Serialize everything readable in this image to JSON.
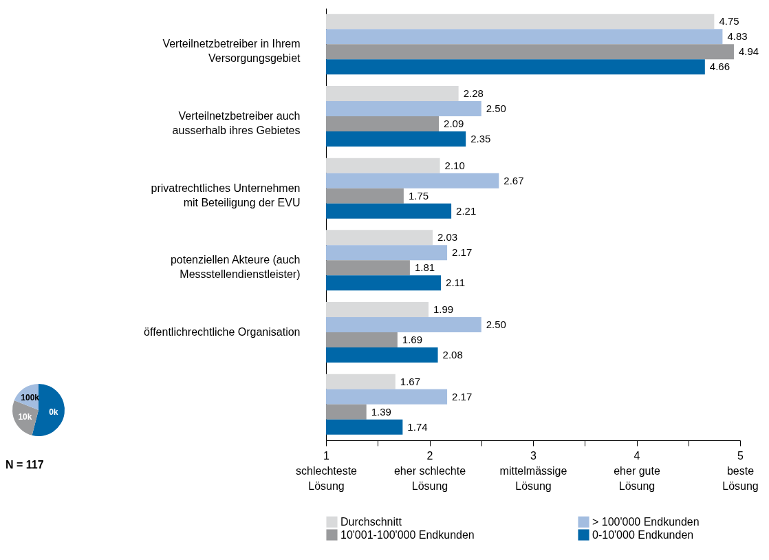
{
  "chart_data": [
    {
      "type": "bar",
      "orientation": "horizontal",
      "categories": [
        "Verteilnetzbetreiber in Ihrem Versorgungsgebiet",
        "Verteilnetzbetreiber auch ausserhalb ihres Gebietes",
        "privatrechtliches Unternehmen mit Beteiligung der EVU",
        "potenziellen Akteure (auch Messstellendienstleister)",
        "öffentlichrechtliche Organisation",
        null
      ],
      "series": [
        {
          "name": "Durchschnitt",
          "color": "#d9dadb",
          "values": [
            4.75,
            2.28,
            2.1,
            2.03,
            1.99,
            1.67
          ],
          "value_labels": [
            "4.75",
            "2.28",
            "2.10",
            "2.03",
            "1.99",
            "1.67"
          ]
        },
        {
          "name": "> 100'000 Endkunden",
          "color": "#a3bde0",
          "values": [
            4.83,
            2.5,
            2.67,
            2.17,
            2.5,
            2.17
          ],
          "value_labels": [
            "4.83",
            "2.50",
            "2.67",
            "2.17",
            "2.50",
            "2.17"
          ]
        },
        {
          "name": "10'001-100'000 Endkunden",
          "color": "#999a9c",
          "values": [
            4.94,
            2.09,
            1.75,
            1.81,
            1.69,
            1.39
          ],
          "value_labels": [
            "4.94",
            "2.09",
            "1.75",
            "1.81",
            "1.69",
            "1.39"
          ]
        },
        {
          "name": "0-10'000 Endkunden",
          "color": "#0067a8",
          "values": [
            4.66,
            2.35,
            2.21,
            2.11,
            2.08,
            1.74
          ],
          "value_labels": [
            "4.66",
            "2.35",
            "2.21",
            "2.11",
            "2.08",
            "1.74"
          ]
        }
      ],
      "xlim": [
        1,
        5
      ],
      "xticks": [
        {
          "value": 1,
          "label": "1\nschlechteste\nLösung"
        },
        {
          "value": 1.5,
          "label": null
        },
        {
          "value": 2,
          "label": "2\neher schlechte\nLösung"
        },
        {
          "value": 2.5,
          "label": null
        },
        {
          "value": 3,
          "label": "3\nmittelmässige\nLösung"
        },
        {
          "value": 3.5,
          "label": null
        },
        {
          "value": 4,
          "label": "4\neher gute\nLösung"
        },
        {
          "value": 4.5,
          "label": null
        },
        {
          "value": 5,
          "label": "5\nbeste\nLösung"
        }
      ],
      "grid": false,
      "legend": "bottom"
    },
    {
      "type": "pie",
      "categories": [
        "0k",
        "10k",
        "100k"
      ],
      "values": [
        54,
        27,
        19
      ],
      "colors": [
        "#0067a8",
        "#999a9c",
        "#a3bde0"
      ],
      "annotations": [
        "N = 117"
      ]
    }
  ]
}
